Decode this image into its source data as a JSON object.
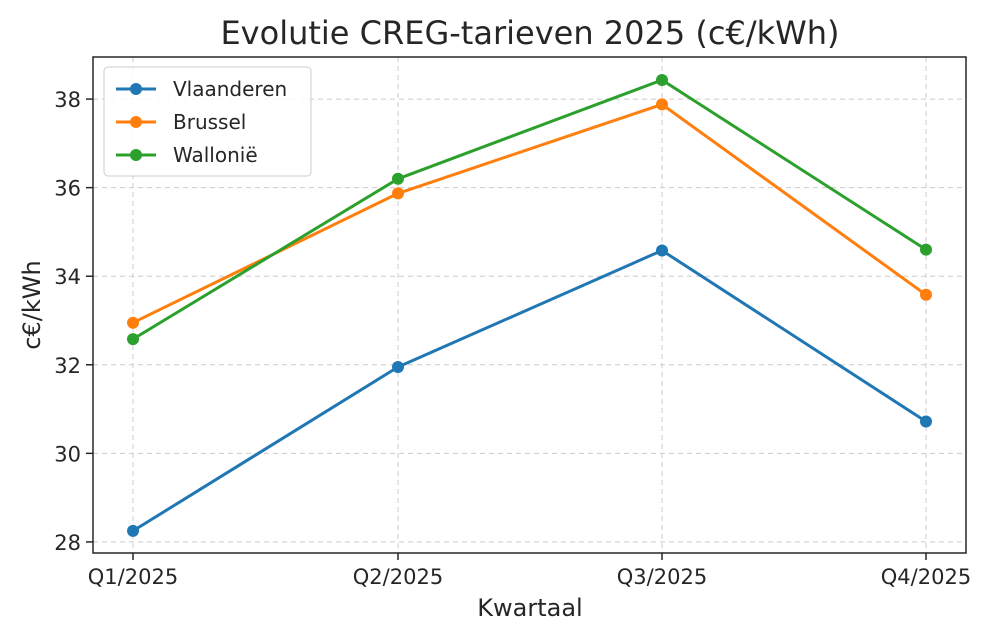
{
  "chart_data": {
    "type": "line",
    "title": "Evolutie CREG-tarieven 2025 (c€/kWh)",
    "xlabel": "Kwartaal",
    "ylabel": "c€/kWh",
    "categories": [
      "Q1/2025",
      "Q2/2025",
      "Q3/2025",
      "Q4/2025"
    ],
    "ylim": [
      27.75,
      38.95
    ],
    "yticks": [
      28,
      30,
      32,
      34,
      36,
      38
    ],
    "grid": true,
    "legend_position": "top-left",
    "series": [
      {
        "name": "Vlaanderen",
        "color": "#1f77b4",
        "values": [
          28.25,
          31.95,
          34.58,
          30.72
        ]
      },
      {
        "name": "Brussel",
        "color": "#ff7f0e",
        "values": [
          32.95,
          35.87,
          37.88,
          33.58
        ]
      },
      {
        "name": "Wallonië",
        "color": "#2ca02c",
        "values": [
          32.58,
          36.2,
          38.43,
          34.6
        ]
      }
    ]
  }
}
